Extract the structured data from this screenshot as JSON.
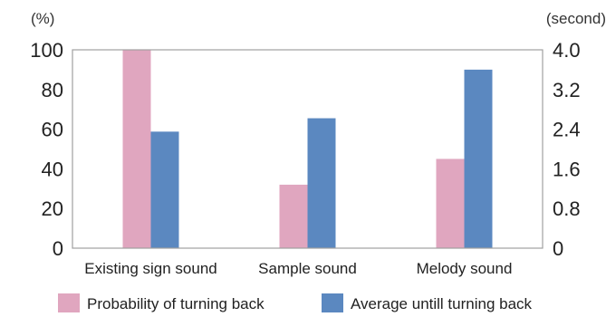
{
  "chart_data": {
    "type": "bar",
    "categories": [
      "Existing sign sound",
      "Sample sound",
      "Melody sound"
    ],
    "series": [
      {
        "name": "Probability of turning back",
        "axis": "left",
        "values": [
          100,
          32,
          45
        ],
        "color": "#e0a6bf"
      },
      {
        "name": "Average untill turning back",
        "axis": "right",
        "values": [
          2.35,
          2.62,
          3.6
        ],
        "color": "#5b88c0"
      }
    ],
    "y_left": {
      "unit": "(%)",
      "ylim": [
        0,
        100
      ],
      "ticks": [
        "100",
        "80",
        "60",
        "40",
        "20",
        "0"
      ]
    },
    "y_right": {
      "unit": "(second)",
      "ylim": [
        0,
        4.0
      ],
      "ticks": [
        "4.0",
        "3.2",
        "2.4",
        "1.6",
        "0.8",
        "0"
      ]
    },
    "grid": false,
    "legend_position": "bottom"
  }
}
